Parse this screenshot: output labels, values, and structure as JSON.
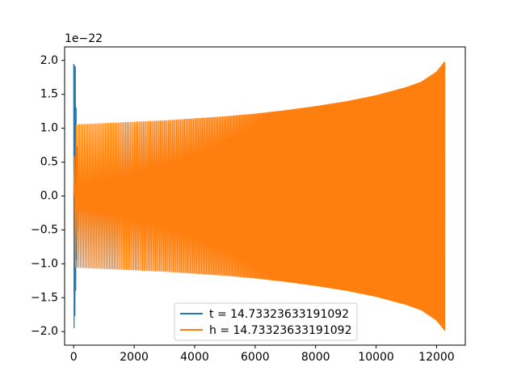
{
  "chart_data": {
    "type": "line",
    "title": "",
    "xlabel": "",
    "ylabel": "",
    "y_offset_label": "1e−22",
    "xlim": [
      -300,
      12950
    ],
    "ylim": [
      -2.2,
      2.2
    ],
    "x_ticks": [
      0,
      2000,
      4000,
      6000,
      8000,
      10000,
      12000
    ],
    "x_tick_labels": [
      "0",
      "2000",
      "4000",
      "6000",
      "8000",
      "10000",
      "12000"
    ],
    "y_ticks": [
      2.0,
      1.5,
      1.0,
      0.5,
      0.0,
      -0.5,
      -1.0,
      -1.5,
      -2.0
    ],
    "y_tick_labels": [
      "2.0",
      "1.5",
      "1.0",
      "0.5",
      "0.0",
      "−0.5",
      "−1.0",
      "−1.5",
      "−2.0"
    ],
    "grid": false,
    "legend_position": "lower-center",
    "series": [
      {
        "name": "t = 14.73323633191092",
        "color": "#1f77b4",
        "style": "oscillating-burst",
        "x_range": [
          0,
          120
        ],
        "envelope": {
          "x": [
            0,
            30,
            60,
            90,
            120
          ],
          "upper": [
            1.95,
            1.92,
            1.9,
            1.0,
            0.5
          ],
          "lower": [
            -1.98,
            -1.9,
            -1.5,
            -1.0,
            -0.5
          ]
        }
      },
      {
        "name": "h = 14.73323633191092",
        "color": "#ff7f0e",
        "style": "oscillating-envelope",
        "x_range": [
          0,
          12270
        ],
        "envelope": {
          "x": [
            0,
            50,
            1000,
            2000,
            3000,
            4000,
            5000,
            6000,
            7000,
            8000,
            9000,
            10000,
            11000,
            11500,
            12000,
            12270
          ],
          "upper": [
            0.0,
            1.05,
            1.07,
            1.09,
            1.11,
            1.14,
            1.17,
            1.21,
            1.26,
            1.32,
            1.39,
            1.48,
            1.6,
            1.68,
            1.83,
            1.98
          ],
          "lower": [
            0.0,
            -1.05,
            -1.07,
            -1.09,
            -1.11,
            -1.14,
            -1.17,
            -1.21,
            -1.26,
            -1.32,
            -1.39,
            -1.48,
            -1.6,
            -1.68,
            -1.83,
            -1.98
          ]
        }
      }
    ]
  }
}
